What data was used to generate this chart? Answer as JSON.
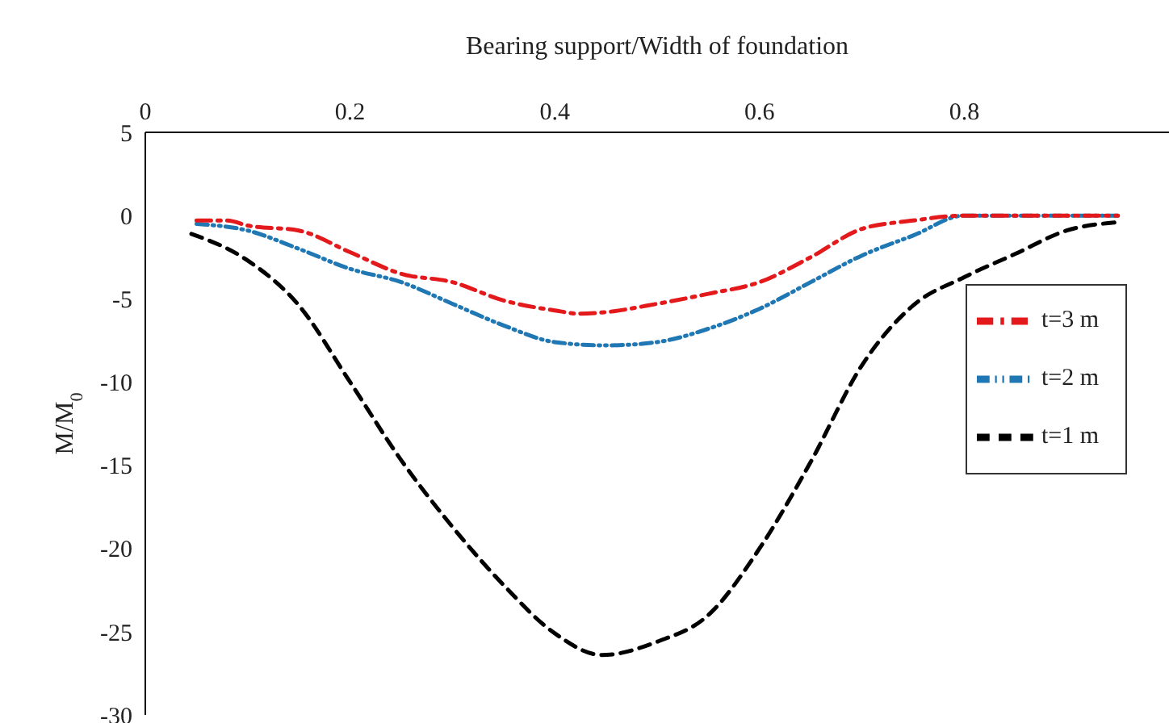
{
  "chart_data": {
    "type": "line",
    "xlabel": "Bearing support/Width of foundation",
    "ylabel": "M/M$_{0}$",
    "xlim": [
      0,
      1
    ],
    "xticks": [
      0,
      0.2,
      0.4,
      0.6,
      0.8
    ],
    "ylim": [
      -30,
      5
    ],
    "yticks": [
      5,
      0,
      -5,
      -10,
      -15,
      -20,
      -25,
      -30
    ],
    "grid": false,
    "legend": "right",
    "marker": "none",
    "series": [
      {
        "name": "t=3 m",
        "color": "#e3191c",
        "line_style": "dashdot",
        "x": [
          0.05,
          0.08,
          0.1,
          0.15,
          0.2,
          0.25,
          0.3,
          0.35,
          0.4,
          0.425,
          0.45,
          0.5,
          0.55,
          0.6,
          0.65,
          0.7,
          0.75,
          0.8,
          0.85,
          0.9,
          0.95
        ],
        "values": [
          -0.3,
          -0.3,
          -0.6,
          -0.9,
          -2.2,
          -3.5,
          -4.0,
          -5.1,
          -5.7,
          -5.9,
          -5.8,
          -5.3,
          -4.7,
          -4.0,
          -2.5,
          -0.8,
          -0.3,
          0,
          0,
          0,
          0
        ]
      },
      {
        "name": "t=2 m",
        "color": "#1f77b4",
        "line_style": "dashdotdot",
        "x": [
          0.05,
          0.1,
          0.15,
          0.2,
          0.25,
          0.3,
          0.35,
          0.4,
          0.45,
          0.5,
          0.55,
          0.6,
          0.65,
          0.7,
          0.75,
          0.8,
          0.85,
          0.9,
          0.95
        ],
        "values": [
          -0.5,
          -0.9,
          -2.0,
          -3.2,
          -4.0,
          -5.3,
          -6.6,
          -7.6,
          -7.8,
          -7.6,
          -6.8,
          -5.6,
          -4.0,
          -2.4,
          -1.2,
          0,
          0,
          0,
          0
        ]
      },
      {
        "name": "t=1 m",
        "color": "#000000",
        "line_style": "dashed",
        "x": [
          0.045,
          0.1,
          0.15,
          0.2,
          0.25,
          0.3,
          0.35,
          0.4,
          0.446,
          0.5,
          0.55,
          0.6,
          0.65,
          0.7,
          0.75,
          0.8,
          0.85,
          0.9,
          0.95
        ],
        "values": [
          -1.1,
          -2.7,
          -5.4,
          -10,
          -14.7,
          -18.7,
          -22.2,
          -25.1,
          -26.4,
          -25.6,
          -24,
          -20,
          -14.8,
          -9,
          -5.4,
          -3.7,
          -2.3,
          -0.9,
          -0.4
        ]
      }
    ]
  }
}
